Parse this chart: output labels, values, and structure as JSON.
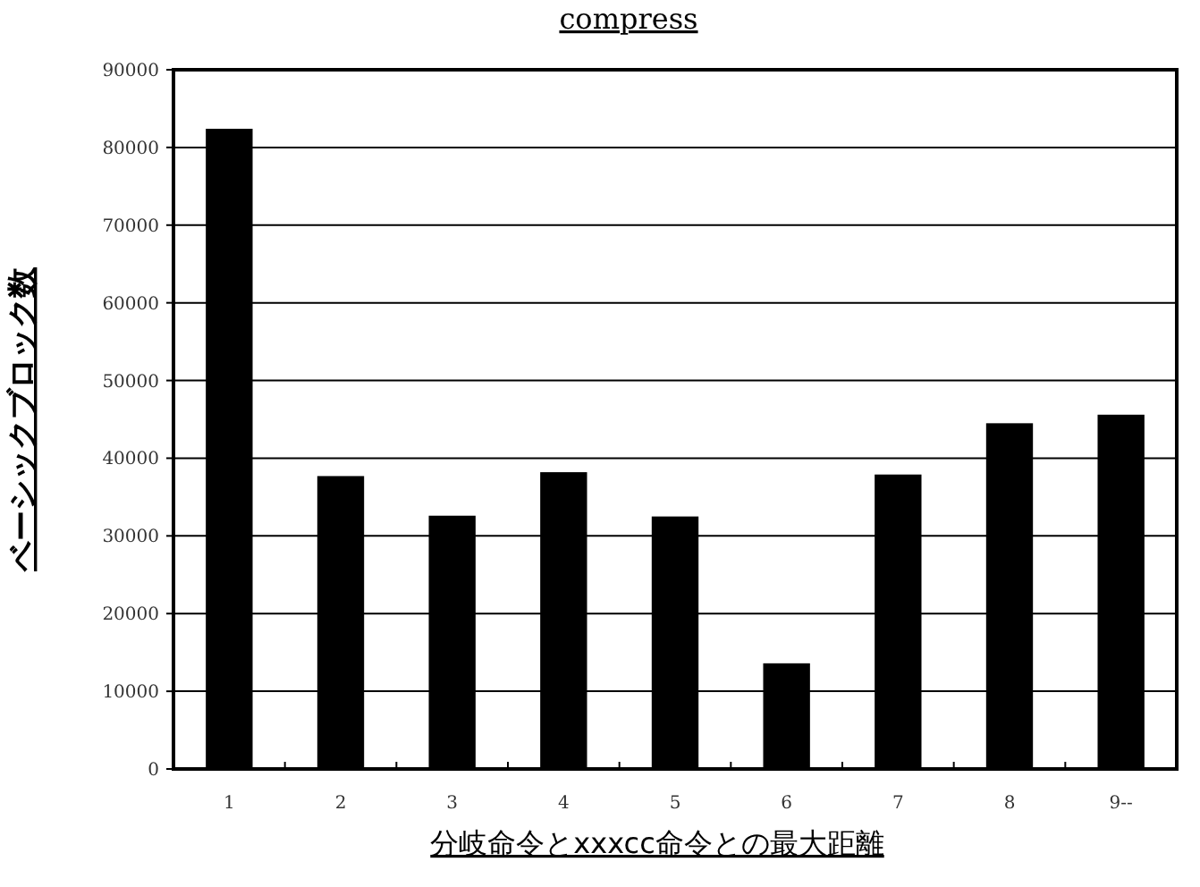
{
  "chart_data": {
    "type": "bar",
    "title": "compress",
    "xlabel": "分岐命令とxxxcc命令との最大距離",
    "ylabel": "ベーシックブロック数",
    "categories": [
      "1",
      "2",
      "3",
      "4",
      "5",
      "6",
      "7",
      "8",
      "9--"
    ],
    "values": [
      82400,
      37700,
      32600,
      38200,
      32500,
      13600,
      37900,
      44500,
      45600
    ],
    "color": "#000000",
    "ylim": [
      0,
      90000
    ],
    "yticks": [
      0,
      10000,
      20000,
      30000,
      40000,
      50000,
      60000,
      70000,
      80000,
      90000
    ],
    "grid": "y"
  }
}
